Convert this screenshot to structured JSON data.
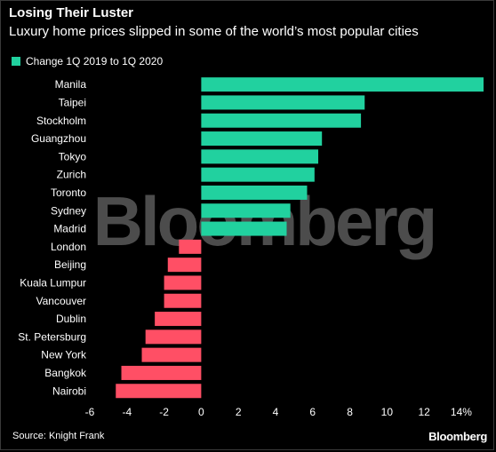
{
  "header": {
    "title": "Losing Their Luster",
    "subtitle": "Luxury home prices slipped in some of the world’s most popular cities"
  },
  "legend": {
    "label": "Change 1Q 2019 to 1Q 2020"
  },
  "colors": {
    "positive": "#21d19f",
    "negative": "#ff4f65",
    "background": "#000000"
  },
  "watermark": "Bloomberg",
  "footer": {
    "source": "Source: Knight Frank",
    "brand": "Bloomberg"
  },
  "chart_data": {
    "type": "bar",
    "orientation": "horizontal",
    "categories": [
      "Manila",
      "Taipei",
      "Stockholm",
      "Guangzhou",
      "Tokyo",
      "Zurich",
      "Toronto",
      "Sydney",
      "Madrid",
      "London",
      "Beijing",
      "Kuala Lumpur",
      "Vancouver",
      "Dublin",
      "St. Petersburg",
      "New York",
      "Bangkok",
      "Nairobi"
    ],
    "series": [
      {
        "values": [
          15.2,
          8.8,
          8.6,
          6.5,
          6.3,
          6.1,
          5.7,
          4.8,
          4.6,
          -1.2,
          -1.8,
          -2.0,
          -2.0,
          -2.5,
          -3.0,
          -3.2,
          -4.3,
          -4.6
        ]
      }
    ],
    "xlim": [
      -6,
      15.2
    ],
    "xticks": [
      "-6",
      "-4",
      "-2",
      "0",
      "2",
      "4",
      "6",
      "8",
      "10",
      "12",
      "14%"
    ],
    "xtick_values": [
      -6,
      -4,
      -2,
      0,
      2,
      4,
      6,
      8,
      10,
      12,
      14
    ]
  }
}
